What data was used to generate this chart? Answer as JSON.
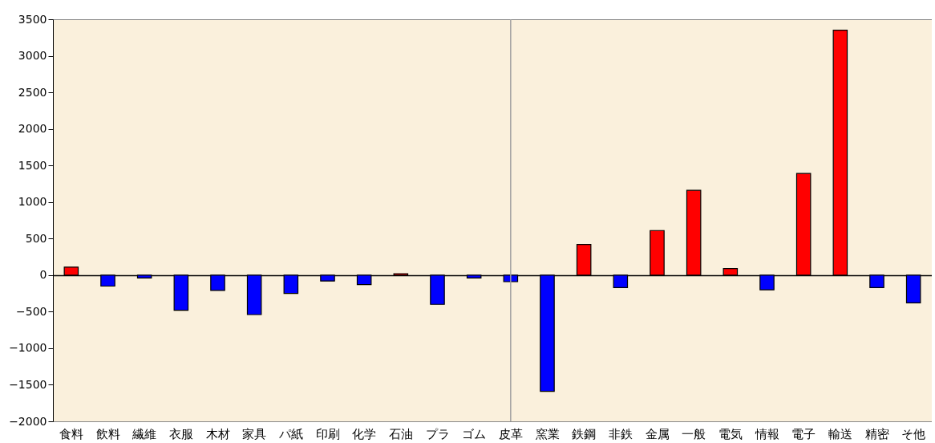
{
  "chart_data": {
    "type": "bar",
    "categories": [
      "食料",
      "飲料",
      "繊維",
      "衣服",
      "木材",
      "家具",
      "パ紙",
      "印刷",
      "化学",
      "石油",
      "プラ",
      "ゴム",
      "皮革",
      "窯業",
      "鉄鋼",
      "非鉄",
      "金属",
      "一般",
      "電気",
      "情報",
      "電子",
      "輸送",
      "精密",
      "そ他"
    ],
    "values": [
      110,
      -150,
      -40,
      -480,
      -210,
      -540,
      -250,
      -80,
      -130,
      20,
      -400,
      -40,
      -90,
      -1590,
      420,
      -170,
      610,
      1160,
      90,
      -200,
      1390,
      3350,
      -170,
      -380
    ],
    "colors": [
      "#ff0000",
      "#0000ff",
      "#0000ff",
      "#0000ff",
      "#0000ff",
      "#0000ff",
      "#0000ff",
      "#0000ff",
      "#0000ff",
      "#ff0000",
      "#0000ff",
      "#0000ff",
      "#0000ff",
      "#0000ff",
      "#ff0000",
      "#0000ff",
      "#ff0000",
      "#ff0000",
      "#ff0000",
      "#0000ff",
      "#ff0000",
      "#ff0000",
      "#0000ff",
      "#0000ff"
    ],
    "ylim": [
      -2000,
      3500
    ],
    "yticks": [
      -2000,
      -1500,
      -1000,
      -500,
      0,
      500,
      1000,
      1500,
      2000,
      2500,
      3000,
      3500
    ],
    "ref_lines": [
      {
        "axis": "x",
        "value": "皮革",
        "color": "#a0a0a0"
      }
    ],
    "grid": false
  }
}
